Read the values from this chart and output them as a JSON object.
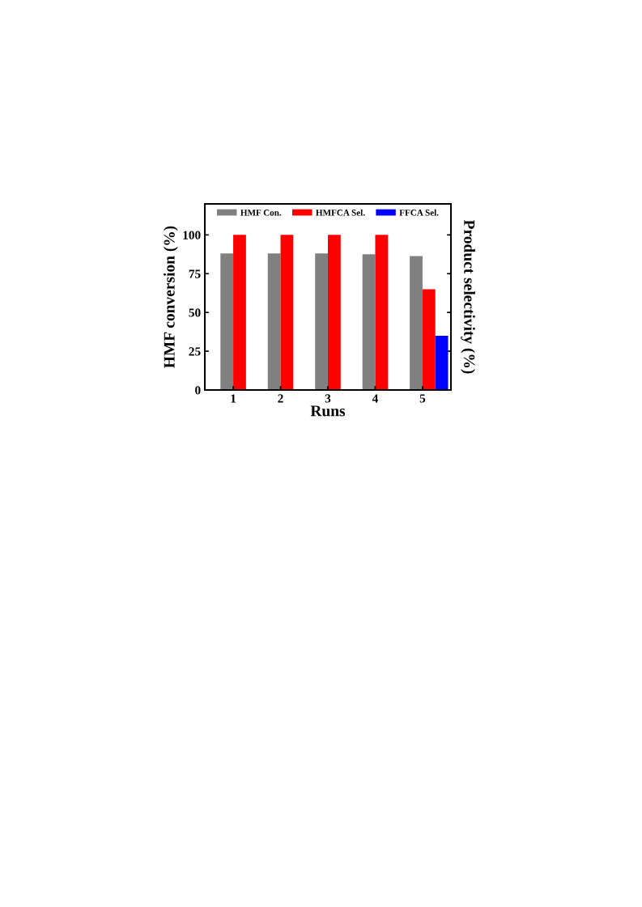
{
  "chart_data": {
    "type": "bar",
    "xlabel": "Runs",
    "ylabel": "HMF conversion (%)",
    "y2label": "Product selectivity (%)",
    "categories": [
      "1",
      "2",
      "3",
      "4",
      "5"
    ],
    "series": [
      {
        "name": "HMF Con.",
        "color": "#808080",
        "values": [
          88,
          88,
          88,
          87.5,
          86.3
        ]
      },
      {
        "name": "HMFCA Sel.",
        "color": "#ff0000",
        "values": [
          100,
          100,
          100,
          100,
          65
        ]
      },
      {
        "name": "FFCA Sel.",
        "color": "#0000ff",
        "values": [
          null,
          null,
          null,
          null,
          35
        ]
      }
    ],
    "ylim": [
      0,
      120
    ],
    "yticks": [
      0,
      25,
      50,
      75,
      100
    ],
    "legend": "top",
    "grid": false
  }
}
